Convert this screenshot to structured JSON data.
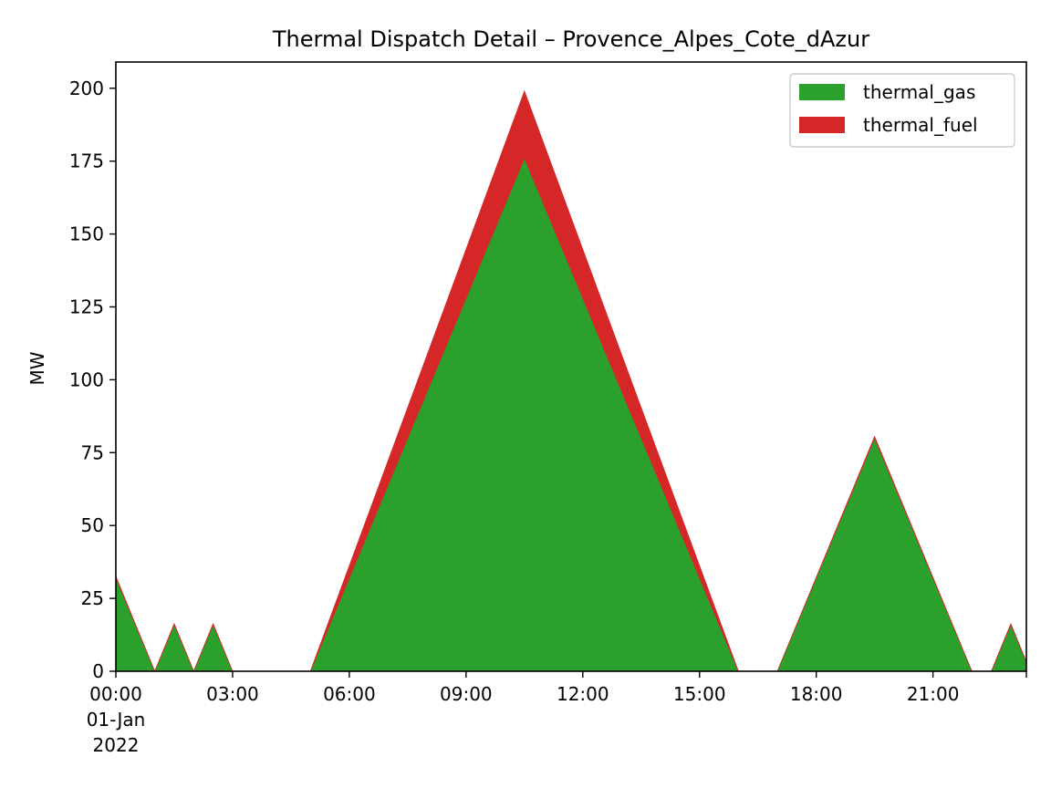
{
  "chart_data": {
    "type": "area",
    "title": "Thermal Dispatch Detail – Provence_Alpes_Cote_dAzur",
    "xlabel": "",
    "ylabel": "MW",
    "ylim": [
      0,
      209
    ],
    "xlim_hours": [
      0,
      23.4
    ],
    "y_ticks": [
      0,
      25,
      50,
      75,
      100,
      125,
      150,
      175,
      200
    ],
    "x_ticks": [
      {
        "hour": 0,
        "lines": [
          "00:00",
          "01-Jan",
          "2022"
        ]
      },
      {
        "hour": 3,
        "lines": [
          "03:00"
        ]
      },
      {
        "hour": 6,
        "lines": [
          "06:00"
        ]
      },
      {
        "hour": 9,
        "lines": [
          "09:00"
        ]
      },
      {
        "hour": 12,
        "lines": [
          "12:00"
        ]
      },
      {
        "hour": 15,
        "lines": [
          "15:00"
        ]
      },
      {
        "hour": 18,
        "lines": [
          "18:00"
        ]
      },
      {
        "hour": 21,
        "lines": [
          "21:00"
        ]
      }
    ],
    "stacked": true,
    "legend_position": "top-right",
    "grid": false,
    "x": [
      "00:00",
      "01:00",
      "01:30",
      "02:00",
      "02:30",
      "03:00",
      "05:00",
      "10:30",
      "16:00",
      "17:00",
      "19:30",
      "22:00",
      "22:30",
      "23:00",
      "23:30"
    ],
    "x_hours": [
      0,
      1,
      1.5,
      2,
      2.5,
      3,
      5,
      10.5,
      16,
      17,
      19.5,
      22,
      22.5,
      23,
      23.5
    ],
    "series": [
      {
        "name": "thermal_gas",
        "color": "#2ca02c",
        "values": [
          32,
          0,
          16,
          0,
          16,
          0,
          0,
          176,
          0,
          0,
          80,
          0,
          0,
          16,
          0
        ]
      },
      {
        "name": "thermal_fuel",
        "color": "#d62728",
        "values": [
          0.5,
          0,
          0.3,
          0,
          0.3,
          0,
          0,
          23,
          0,
          0,
          0.5,
          0,
          0,
          0.3,
          0
        ]
      }
    ]
  }
}
